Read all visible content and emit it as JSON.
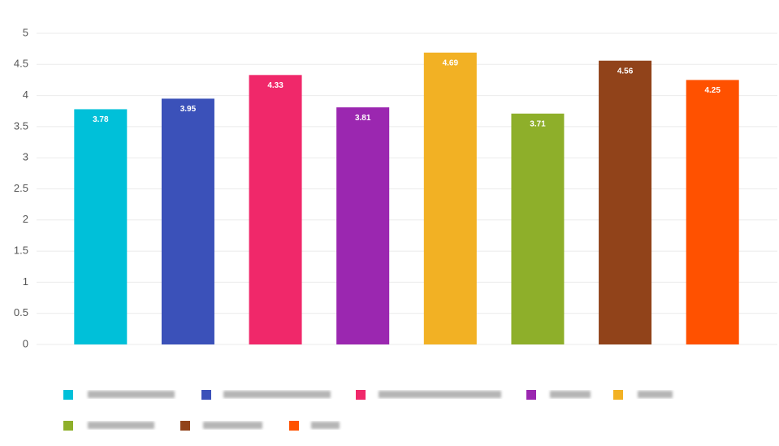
{
  "chart_data": {
    "type": "bar",
    "categories": [
      null,
      null,
      null,
      null,
      null,
      null,
      null,
      null
    ],
    "values": [
      3.78,
      3.95,
      4.33,
      3.81,
      4.69,
      3.71,
      4.56,
      4.25
    ],
    "colors": [
      "#00c0d9",
      "#3b51b9",
      "#f0286a",
      "#9b27b0",
      "#f2b124",
      "#8eaf2a",
      "#91431a",
      "#ff5100"
    ],
    "ylim": [
      0,
      5
    ],
    "yticks": [
      0,
      0.5,
      1,
      1.5,
      2,
      2.5,
      3,
      3.5,
      4,
      4.5,
      5
    ],
    "grid": true
  }
}
